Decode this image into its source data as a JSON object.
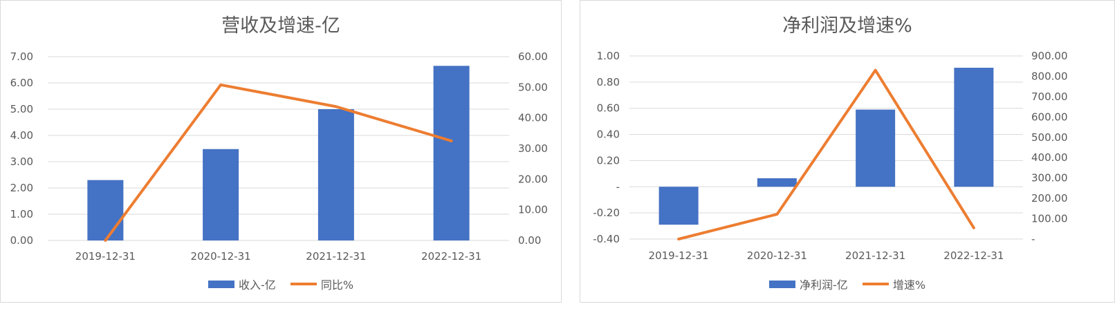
{
  "chart_data": [
    {
      "type": "bar+line",
      "title": "营收及增速-亿",
      "categories": [
        "2019-12-31",
        "2020-12-31",
        "2021-12-31",
        "2022-12-31"
      ],
      "series": [
        {
          "name": "收入-亿",
          "type": "bar",
          "axis": "left",
          "values": [
            2.3,
            3.48,
            5.0,
            6.65
          ]
        },
        {
          "name": "同比%",
          "type": "line",
          "axis": "right",
          "values": [
            0.0,
            50.8,
            43.7,
            32.5
          ]
        }
      ],
      "y_left": {
        "ticks": [
          "0.00",
          "1.00",
          "2.00",
          "3.00",
          "4.00",
          "5.00",
          "6.00",
          "7.00"
        ],
        "min": 0,
        "max": 7
      },
      "y_right": {
        "ticks": [
          "0.00",
          "10.00",
          "20.00",
          "30.00",
          "40.00",
          "50.00",
          "60.00"
        ],
        "min": 0,
        "max": 60
      },
      "grid": true,
      "legend_position": "bottom",
      "colors": {
        "bar": "#4472C4",
        "line": "#ED7D31"
      }
    },
    {
      "type": "bar+line",
      "title": "净利润及增速%",
      "categories": [
        "2019-12-31",
        "2020-12-31",
        "2021-12-31",
        "2022-12-31"
      ],
      "series": [
        {
          "name": "净利润-亿",
          "type": "bar",
          "axis": "left",
          "values": [
            -0.29,
            0.065,
            0.59,
            0.91
          ]
        },
        {
          "name": "增速%",
          "type": "line",
          "axis": "right",
          "values": [
            0.0,
            122,
            830,
            55
          ]
        }
      ],
      "y_left": {
        "ticks": [
          "-0.40",
          "-0.20",
          "-",
          "0.20",
          "0.40",
          "0.60",
          "0.80",
          "1.00"
        ],
        "min": -0.4,
        "max": 1.0
      },
      "y_right": {
        "ticks": [
          "-",
          "100.00",
          "200.00",
          "300.00",
          "400.00",
          "500.00",
          "600.00",
          "700.00",
          "800.00",
          "900.00"
        ],
        "min": 0,
        "max": 900
      },
      "grid": true,
      "legend_position": "bottom",
      "colors": {
        "bar": "#4472C4",
        "line": "#ED7D31"
      }
    }
  ]
}
